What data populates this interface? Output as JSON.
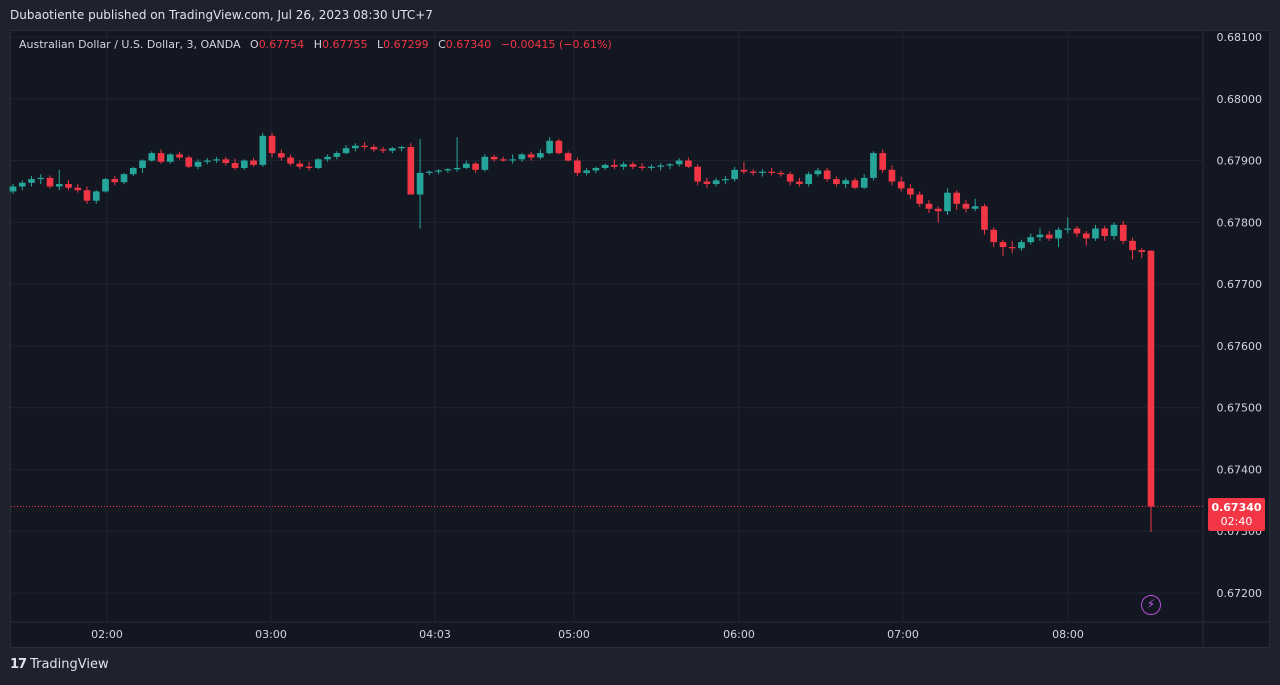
{
  "header": {
    "publisher": "Dubaotiente published on TradingView.com, Jul 26, 2023 08:30 UTC+7"
  },
  "legend": {
    "symbol": "Australian Dollar / U.S. Dollar, 3, OANDA",
    "open_label": "O",
    "open": "0.67754",
    "high_label": "H",
    "high": "0.67755",
    "low_label": "L",
    "low": "0.67299",
    "close_label": "C",
    "close": "0.67340",
    "change": "−0.00415 (−0.61%)"
  },
  "last_price": {
    "price": "0.67340",
    "countdown": "02:40"
  },
  "footer": {
    "brand": "TradingView",
    "logo_mark": "17"
  },
  "colors": {
    "up": "#26a69a",
    "down": "#f23645",
    "background": "#131722",
    "grid": "#1f2330",
    "axis_text": "#d1d4dc",
    "last_price": "#f23645"
  },
  "icons": {
    "lightning": "lightning-icon"
  },
  "chart_data": {
    "type": "candlestick",
    "timeframe_minutes": 3,
    "title": "Australian Dollar / U.S. Dollar, 3, OANDA",
    "ylim": [
      0.6716,
      0.6812
    ],
    "y_ticks": [
      "0.68100",
      "0.68000",
      "0.67900",
      "0.67800",
      "0.67700",
      "0.67600",
      "0.67500",
      "0.67400",
      "0.67300",
      "0.67200"
    ],
    "x_ticks": [
      "02:00",
      "03:00",
      "04:03",
      "05:00",
      "06:00",
      "07:00",
      "08:00"
    ],
    "grid": true,
    "last_value": 0.6734,
    "candles_ohlc": [
      [
        0.6785,
        0.67862,
        0.67846,
        0.67858
      ],
      [
        0.67858,
        0.67868,
        0.67852,
        0.67864
      ],
      [
        0.67864,
        0.67875,
        0.67858,
        0.6787
      ],
      [
        0.6787,
        0.67878,
        0.67862,
        0.67872
      ],
      [
        0.67872,
        0.67876,
        0.67855,
        0.67858
      ],
      [
        0.67858,
        0.67885,
        0.67852,
        0.67862
      ],
      [
        0.67862,
        0.67868,
        0.67852,
        0.67856
      ],
      [
        0.67856,
        0.67862,
        0.67848,
        0.67852
      ],
      [
        0.67852,
        0.67858,
        0.6783,
        0.67835
      ],
      [
        0.67835,
        0.67852,
        0.6783,
        0.6785
      ],
      [
        0.6785,
        0.67872,
        0.67848,
        0.6787
      ],
      [
        0.6787,
        0.67875,
        0.6786,
        0.67865
      ],
      [
        0.67865,
        0.6788,
        0.67862,
        0.67878
      ],
      [
        0.67878,
        0.6789,
        0.67875,
        0.67888
      ],
      [
        0.67888,
        0.67902,
        0.6788,
        0.679
      ],
      [
        0.679,
        0.67915,
        0.67898,
        0.67912
      ],
      [
        0.67912,
        0.67918,
        0.67895,
        0.67898
      ],
      [
        0.67898,
        0.67912,
        0.67895,
        0.6791
      ],
      [
        0.6791,
        0.67914,
        0.67902,
        0.67905
      ],
      [
        0.67905,
        0.67908,
        0.67888,
        0.6789
      ],
      [
        0.6789,
        0.67902,
        0.67886,
        0.67898
      ],
      [
        0.67898,
        0.67904,
        0.67894,
        0.679
      ],
      [
        0.679,
        0.67906,
        0.67896,
        0.67902
      ],
      [
        0.67902,
        0.67906,
        0.67892,
        0.67896
      ],
      [
        0.67896,
        0.67903,
        0.67885,
        0.67888
      ],
      [
        0.67888,
        0.67902,
        0.67885,
        0.679
      ],
      [
        0.679,
        0.67904,
        0.6789,
        0.67893
      ],
      [
        0.67893,
        0.67945,
        0.6789,
        0.6794
      ],
      [
        0.6794,
        0.67945,
        0.67905,
        0.67912
      ],
      [
        0.67912,
        0.67918,
        0.679,
        0.67905
      ],
      [
        0.67905,
        0.6791,
        0.67892,
        0.67895
      ],
      [
        0.67895,
        0.679,
        0.67886,
        0.6789
      ],
      [
        0.6789,
        0.67898,
        0.67884,
        0.67888
      ],
      [
        0.67888,
        0.67904,
        0.67886,
        0.67902
      ],
      [
        0.67902,
        0.6791,
        0.67898,
        0.67906
      ],
      [
        0.67906,
        0.67915,
        0.67902,
        0.67912
      ],
      [
        0.67912,
        0.67925,
        0.6791,
        0.6792
      ],
      [
        0.6792,
        0.67928,
        0.67915,
        0.67924
      ],
      [
        0.67924,
        0.6793,
        0.67918,
        0.67922
      ],
      [
        0.67922,
        0.67926,
        0.67914,
        0.67918
      ],
      [
        0.67918,
        0.67922,
        0.67912,
        0.67916
      ],
      [
        0.67916,
        0.67922,
        0.67912,
        0.6792
      ],
      [
        0.6792,
        0.67924,
        0.67915,
        0.67922
      ],
      [
        0.67922,
        0.67928,
        0.6785,
        0.67845
      ],
      [
        0.67845,
        0.67935,
        0.6779,
        0.6788
      ],
      [
        0.6788,
        0.67884,
        0.67876,
        0.67882
      ],
      [
        0.67882,
        0.67886,
        0.67878,
        0.67884
      ],
      [
        0.67884,
        0.67888,
        0.6788,
        0.67886
      ],
      [
        0.67886,
        0.67938,
        0.67882,
        0.67888
      ],
      [
        0.67888,
        0.679,
        0.67886,
        0.67895
      ],
      [
        0.67895,
        0.67898,
        0.6788,
        0.67885
      ],
      [
        0.67885,
        0.6791,
        0.67882,
        0.67906
      ],
      [
        0.67906,
        0.6791,
        0.67898,
        0.67902
      ],
      [
        0.67902,
        0.67906,
        0.67898,
        0.679
      ],
      [
        0.679,
        0.6791,
        0.67895,
        0.67902
      ],
      [
        0.67902,
        0.67912,
        0.67898,
        0.6791
      ],
      [
        0.6791,
        0.67914,
        0.679,
        0.67905
      ],
      [
        0.67905,
        0.67918,
        0.67902,
        0.67912
      ],
      [
        0.67912,
        0.67938,
        0.6791,
        0.67932
      ],
      [
        0.67932,
        0.67935,
        0.6791,
        0.67912
      ],
      [
        0.67912,
        0.67915,
        0.67898,
        0.679
      ],
      [
        0.679,
        0.67905,
        0.67875,
        0.6788
      ],
      [
        0.6788,
        0.67888,
        0.67876,
        0.67884
      ],
      [
        0.67884,
        0.6789,
        0.6788,
        0.67888
      ],
      [
        0.67888,
        0.67895,
        0.67885,
        0.67893
      ],
      [
        0.67893,
        0.67902,
        0.67886,
        0.6789
      ],
      [
        0.6789,
        0.67898,
        0.67885,
        0.67894
      ],
      [
        0.67894,
        0.67898,
        0.67886,
        0.6789
      ],
      [
        0.6789,
        0.67896,
        0.67884,
        0.67888
      ],
      [
        0.67888,
        0.67894,
        0.67884,
        0.6789
      ],
      [
        0.6789,
        0.67896,
        0.67884,
        0.67892
      ],
      [
        0.67892,
        0.67896,
        0.67886,
        0.67894
      ],
      [
        0.67894,
        0.67904,
        0.6789,
        0.679
      ],
      [
        0.679,
        0.67905,
        0.67888,
        0.6789
      ],
      [
        0.6789,
        0.67894,
        0.6786,
        0.67866
      ],
      [
        0.67866,
        0.67872,
        0.67856,
        0.67862
      ],
      [
        0.67862,
        0.67872,
        0.67858,
        0.67868
      ],
      [
        0.67868,
        0.67875,
        0.67862,
        0.6787
      ],
      [
        0.6787,
        0.6789,
        0.67866,
        0.67885
      ],
      [
        0.67885,
        0.67898,
        0.67878,
        0.67882
      ],
      [
        0.67882,
        0.67886,
        0.67876,
        0.6788
      ],
      [
        0.6788,
        0.67886,
        0.67874,
        0.67882
      ],
      [
        0.67882,
        0.67888,
        0.67876,
        0.6788
      ],
      [
        0.6788,
        0.67884,
        0.67874,
        0.67878
      ],
      [
        0.67878,
        0.67882,
        0.6786,
        0.67866
      ],
      [
        0.67866,
        0.67872,
        0.67858,
        0.67862
      ],
      [
        0.67862,
        0.67882,
        0.67858,
        0.67878
      ],
      [
        0.67878,
        0.67888,
        0.67874,
        0.67884
      ],
      [
        0.67884,
        0.67888,
        0.67866,
        0.6787
      ],
      [
        0.6787,
        0.67874,
        0.67858,
        0.67862
      ],
      [
        0.67862,
        0.67872,
        0.67856,
        0.67868
      ],
      [
        0.67868,
        0.67872,
        0.67854,
        0.67856
      ],
      [
        0.67856,
        0.67878,
        0.67854,
        0.67872
      ],
      [
        0.67872,
        0.67915,
        0.67868,
        0.67912
      ],
      [
        0.67912,
        0.67918,
        0.6788,
        0.67885
      ],
      [
        0.67885,
        0.67892,
        0.6786,
        0.67866
      ],
      [
        0.67866,
        0.67874,
        0.6785,
        0.67855
      ],
      [
        0.67855,
        0.67862,
        0.67838,
        0.67845
      ],
      [
        0.67845,
        0.6785,
        0.67825,
        0.6783
      ],
      [
        0.6783,
        0.67836,
        0.67815,
        0.67822
      ],
      [
        0.67822,
        0.67826,
        0.678,
        0.67818
      ],
      [
        0.67818,
        0.67855,
        0.67812,
        0.67848
      ],
      [
        0.67848,
        0.67852,
        0.6782,
        0.6783
      ],
      [
        0.6783,
        0.67836,
        0.67816,
        0.67822
      ],
      [
        0.67822,
        0.67838,
        0.67818,
        0.67826
      ],
      [
        0.67826,
        0.6783,
        0.6778,
        0.67788
      ],
      [
        0.67788,
        0.67792,
        0.6776,
        0.67768
      ],
      [
        0.67768,
        0.67772,
        0.67746,
        0.6776
      ],
      [
        0.6776,
        0.6777,
        0.6775,
        0.67758
      ],
      [
        0.67758,
        0.67772,
        0.67754,
        0.67768
      ],
      [
        0.67768,
        0.67782,
        0.67764,
        0.67776
      ],
      [
        0.67776,
        0.6779,
        0.6777,
        0.6778
      ],
      [
        0.6778,
        0.67786,
        0.6777,
        0.67774
      ],
      [
        0.67774,
        0.67792,
        0.6776,
        0.67788
      ],
      [
        0.67788,
        0.67808,
        0.67782,
        0.6779
      ],
      [
        0.6779,
        0.67794,
        0.67776,
        0.67782
      ],
      [
        0.67782,
        0.67786,
        0.67762,
        0.67774
      ],
      [
        0.67774,
        0.67796,
        0.6777,
        0.6779
      ],
      [
        0.6779,
        0.67794,
        0.6777,
        0.67778
      ],
      [
        0.67778,
        0.678,
        0.67772,
        0.67796
      ],
      [
        0.67796,
        0.67802,
        0.67765,
        0.6777
      ],
      [
        0.6777,
        0.67775,
        0.6774,
        0.67755
      ],
      [
        0.67755,
        0.67758,
        0.67742,
        0.67752
      ],
      [
        0.67754,
        0.67755,
        0.67299,
        0.6734
      ]
    ]
  }
}
